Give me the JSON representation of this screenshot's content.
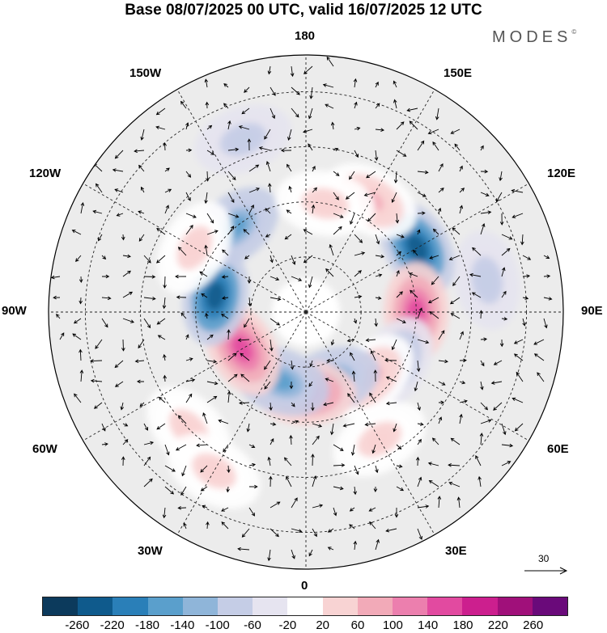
{
  "title": "Base 08/07/2025 00 UTC, valid 16/07/2025 12 UTC",
  "brand": "MODES",
  "brand_mark": "©",
  "longitude_labels": {
    "n180": "180",
    "w150": "150W",
    "e150": "150E",
    "w120": "120W",
    "e120": "120E",
    "w90": "90W",
    "e90": "90E",
    "w60": "60W",
    "e60": "60E",
    "w30": "30W",
    "e30": "30E",
    "s0": "0"
  },
  "vector_scale_label": "30",
  "colorbar": {
    "colors": [
      "#0c3a5c",
      "#0f5a8c",
      "#2a7fb8",
      "#5a9fcc",
      "#8fb5d9",
      "#c5cde6",
      "#e6e4f0",
      "#ffffff",
      "#f8d3d3",
      "#f2aab8",
      "#ec7fae",
      "#e24aa0",
      "#cc1f8e",
      "#a0107a",
      "#6a0a7a"
    ],
    "labels": [
      "-260",
      "-220",
      "-180",
      "-140",
      "-100",
      "-60",
      "-20",
      "20",
      "60",
      "100",
      "140",
      "180",
      "220",
      "260"
    ]
  },
  "anomaly_centers": [
    {
      "lon": 120,
      "lat": 55,
      "value": -220
    },
    {
      "lon": 90,
      "lat": 60,
      "value": 180
    },
    {
      "lon": 60,
      "lat": 62,
      "value": -100
    },
    {
      "lon": 45,
      "lat": 65,
      "value": 100
    },
    {
      "lon": 20,
      "lat": 70,
      "value": -140
    },
    {
      "lon": 0,
      "lat": 68,
      "value": 180
    },
    {
      "lon": -20,
      "lat": 70,
      "value": -140
    },
    {
      "lon": -60,
      "lat": 70,
      "value": 180
    },
    {
      "lon": -100,
      "lat": 65,
      "value": -220
    },
    {
      "lon": -140,
      "lat": 60,
      "value": -140
    },
    {
      "lon": 150,
      "lat": 55,
      "value": 100
    },
    {
      "lon": 170,
      "lat": 60,
      "value": 60
    },
    {
      "lon": -120,
      "lat": 55,
      "value": 60
    },
    {
      "lon": 30,
      "lat": 50,
      "value": 60
    },
    {
      "lon": -45,
      "lat": 45,
      "value": 60
    },
    {
      "lon": -160,
      "lat": 40,
      "value": -60
    },
    {
      "lon": 100,
      "lat": 40,
      "value": -60
    },
    {
      "lon": -30,
      "lat": 40,
      "value": 60
    }
  ]
}
